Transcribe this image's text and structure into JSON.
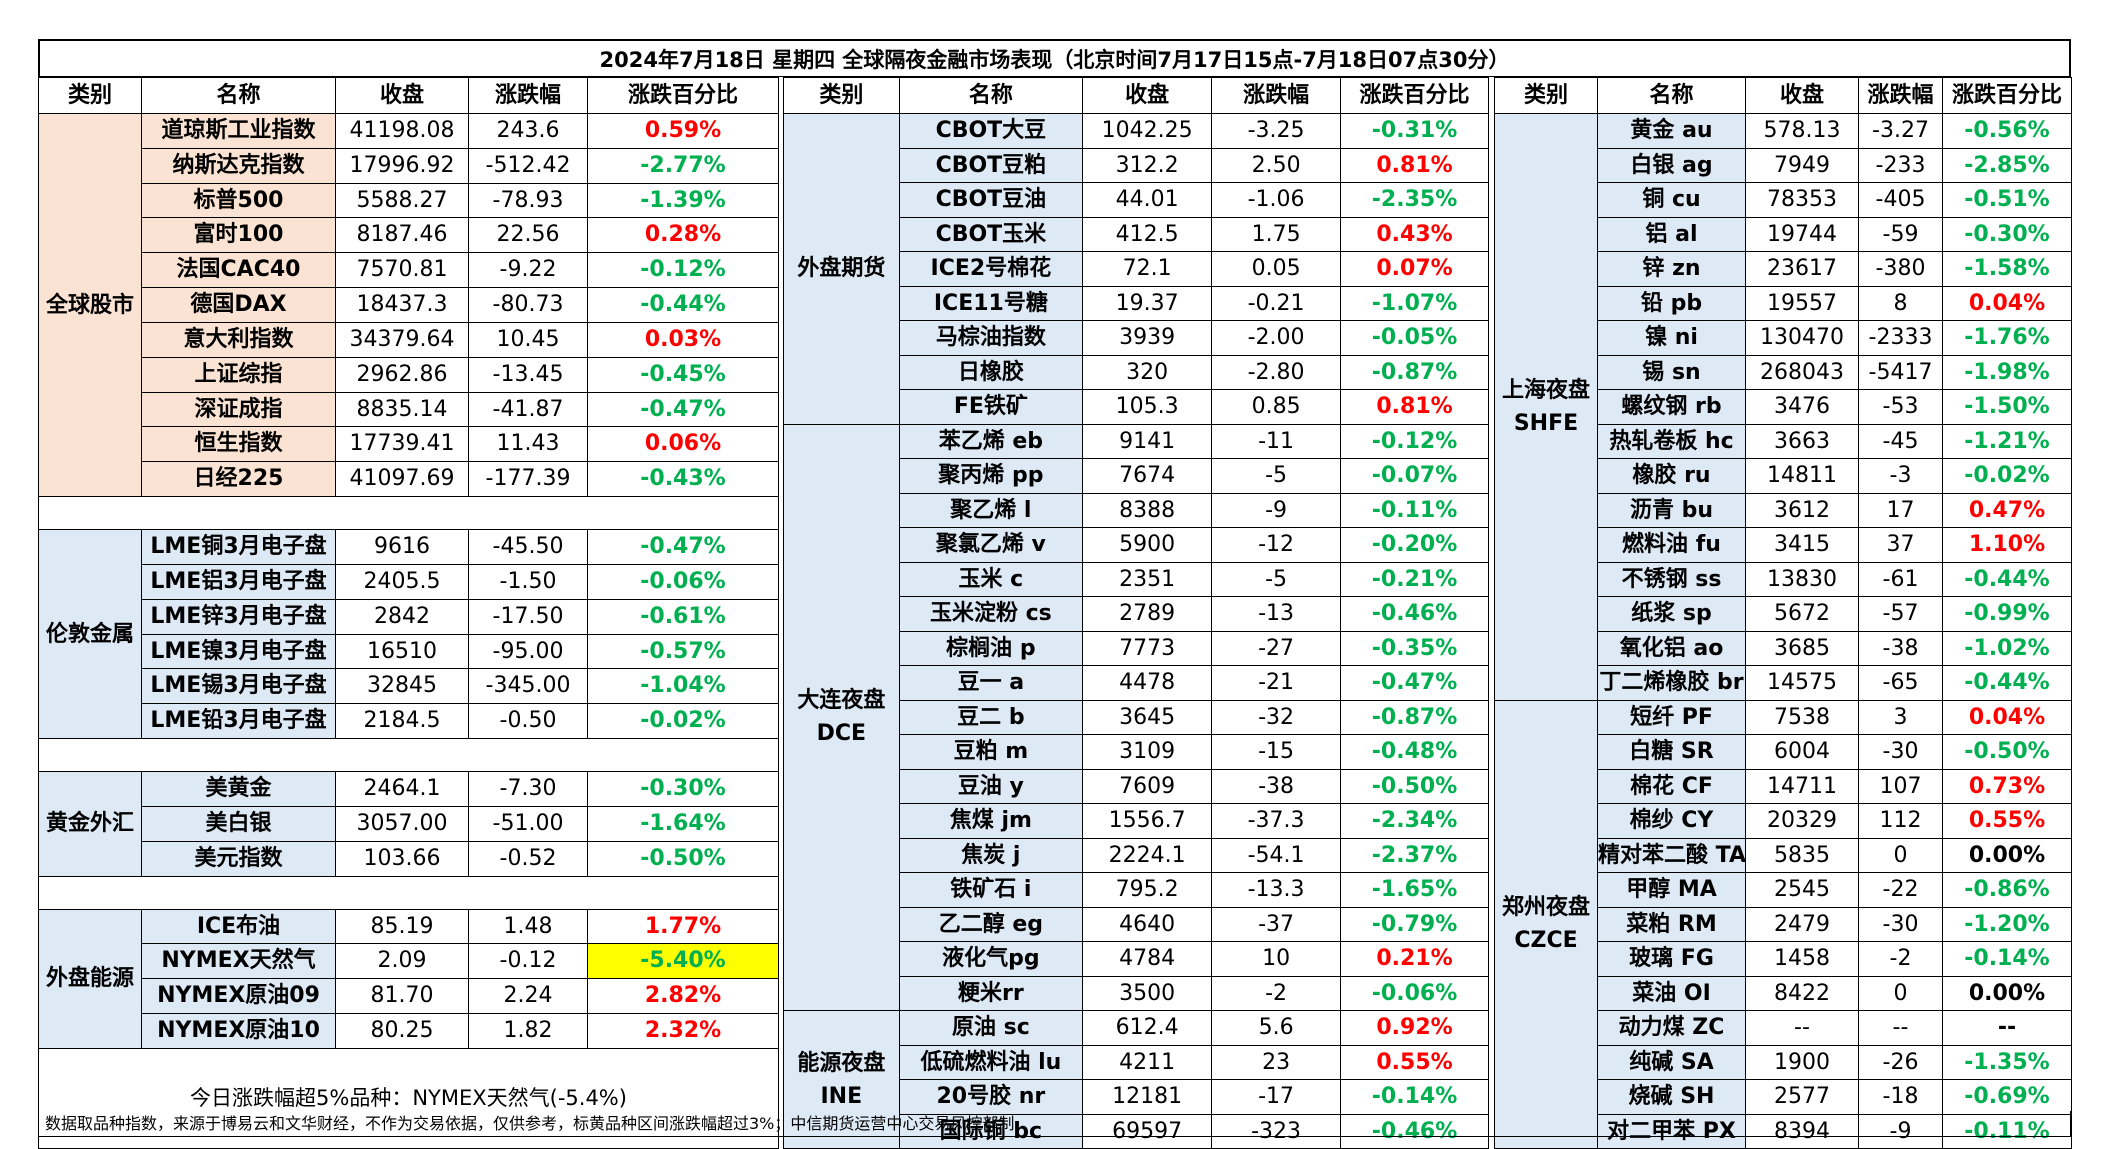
{
  "title": "2024年7月18日 星期四 全球隔夜金融市场表现（北京时间7月17日15点-7月18日07点30分）",
  "headers": [
    "类别",
    "名称",
    "收盘",
    "涨跌幅",
    "涨跌百分比"
  ],
  "left": {
    "groups": [
      {
        "cat": "全球股市",
        "bg": "orange",
        "rows": [
          [
            "道琼斯工业指数",
            "41198.08",
            "243.6",
            "0.59%",
            "up"
          ],
          [
            "纳斯达克指数",
            "17996.92",
            "-512.42",
            "-2.77%",
            "down"
          ],
          [
            "标普500",
            "5588.27",
            "-78.93",
            "-1.39%",
            "down"
          ],
          [
            "富时100",
            "8187.46",
            "22.56",
            "0.28%",
            "up"
          ],
          [
            "法国CAC40",
            "7570.81",
            "-9.22",
            "-0.12%",
            "down"
          ],
          [
            "德国DAX",
            "18437.3",
            "-80.73",
            "-0.44%",
            "down"
          ],
          [
            "意大利指数",
            "34379.64",
            "10.45",
            "0.03%",
            "up"
          ],
          [
            "上证综指",
            "2962.86",
            "-13.45",
            "-0.45%",
            "down"
          ],
          [
            "深证成指",
            "8835.14",
            "-41.87",
            "-0.47%",
            "down"
          ],
          [
            "恒生指数",
            "17739.41",
            "11.43",
            "0.06%",
            "up"
          ],
          [
            "日经225",
            "41097.69",
            "-177.39",
            "-0.43%",
            "down"
          ]
        ]
      },
      {
        "cat": "伦敦金属",
        "bg": "blue",
        "rows": [
          [
            "LME铜3月电子盘",
            "9616",
            "-45.50",
            "-0.47%",
            "down"
          ],
          [
            "LME铝3月电子盘",
            "2405.5",
            "-1.50",
            "-0.06%",
            "down"
          ],
          [
            "LME锌3月电子盘",
            "2842",
            "-17.50",
            "-0.61%",
            "down"
          ],
          [
            "LME镍3月电子盘",
            "16510",
            "-95.00",
            "-0.57%",
            "down"
          ],
          [
            "LME锡3月电子盘",
            "32845",
            "-345.00",
            "-1.04%",
            "down"
          ],
          [
            "LME铅3月电子盘",
            "2184.5",
            "-0.50",
            "-0.02%",
            "down"
          ]
        ]
      },
      {
        "cat": "黄金外汇",
        "bg": "blue",
        "rows": [
          [
            "美黄金",
            "2464.1",
            "-7.30",
            "-0.30%",
            "down"
          ],
          [
            "美白银",
            "3057.00",
            "-51.00",
            "-1.64%",
            "down"
          ],
          [
            "美元指数",
            "103.66",
            "-0.52",
            "-0.50%",
            "down"
          ]
        ]
      },
      {
        "cat": "外盘能源",
        "bg": "blue",
        "rows": [
          [
            "ICE布油",
            "85.19",
            "1.48",
            "1.77%",
            "up"
          ],
          [
            "NYMEX天然气",
            "2.09",
            "-0.12",
            "-5.40%",
            "down",
            "hl"
          ],
          [
            "NYMEX原油09",
            "81.70",
            "2.24",
            "2.82%",
            "up"
          ],
          [
            "NYMEX原油10",
            "80.25",
            "1.82",
            "2.32%",
            "up"
          ]
        ]
      }
    ],
    "note": "今日涨跌幅超5%品种：NYMEX天然气(-5.4%)"
  },
  "middle": {
    "groups": [
      {
        "cat": "外盘期货",
        "bg": "blue",
        "rows": [
          [
            "CBOT大豆",
            "1042.25",
            "-3.25",
            "-0.31%",
            "down"
          ],
          [
            "CBOT豆粕",
            "312.2",
            "2.50",
            "0.81%",
            "up"
          ],
          [
            "CBOT豆油",
            "44.01",
            "-1.06",
            "-2.35%",
            "down"
          ],
          [
            "CBOT玉米",
            "412.5",
            "1.75",
            "0.43%",
            "up"
          ],
          [
            "ICE2号棉花",
            "72.1",
            "0.05",
            "0.07%",
            "up"
          ],
          [
            "ICE11号糖",
            "19.37",
            "-0.21",
            "-1.07%",
            "down"
          ],
          [
            "马棕油指数",
            "3939",
            "-2.00",
            "-0.05%",
            "down"
          ],
          [
            "日橡胶",
            "320",
            "-2.80",
            "-0.87%",
            "down"
          ],
          [
            "FE铁矿",
            "105.3",
            "0.85",
            "0.81%",
            "up"
          ]
        ]
      },
      {
        "cat": "大连夜盘 DCE",
        "bg": "blue",
        "rows": [
          [
            "苯乙烯 eb",
            "9141",
            "-11",
            "-0.12%",
            "down"
          ],
          [
            "聚丙烯 pp",
            "7674",
            "-5",
            "-0.07%",
            "down"
          ],
          [
            "聚乙烯 l",
            "8388",
            "-9",
            "-0.11%",
            "down"
          ],
          [
            "聚氯乙烯 v",
            "5900",
            "-12",
            "-0.20%",
            "down"
          ],
          [
            "玉米 c",
            "2351",
            "-5",
            "-0.21%",
            "down"
          ],
          [
            "玉米淀粉 cs",
            "2789",
            "-13",
            "-0.46%",
            "down"
          ],
          [
            "棕榈油 p",
            "7773",
            "-27",
            "-0.35%",
            "down"
          ],
          [
            "豆一 a",
            "4478",
            "-21",
            "-0.47%",
            "down"
          ],
          [
            "豆二 b",
            "3645",
            "-32",
            "-0.87%",
            "down"
          ],
          [
            "豆粕 m",
            "3109",
            "-15",
            "-0.48%",
            "down"
          ],
          [
            "豆油 y",
            "7609",
            "-38",
            "-0.50%",
            "down"
          ],
          [
            "焦煤 jm",
            "1556.7",
            "-37.3",
            "-2.34%",
            "down"
          ],
          [
            "焦炭 j",
            "2224.1",
            "-54.1",
            "-2.37%",
            "down"
          ],
          [
            "铁矿石 i",
            "795.2",
            "-13.3",
            "-1.65%",
            "down"
          ],
          [
            "乙二醇 eg",
            "4640",
            "-37",
            "-0.79%",
            "down"
          ],
          [
            "液化气pg",
            "4784",
            "10",
            "0.21%",
            "up"
          ],
          [
            "粳米rr",
            "3500",
            "-2",
            "-0.06%",
            "down"
          ]
        ]
      },
      {
        "cat": "能源夜盘 INE",
        "bg": "blue",
        "rows": [
          [
            "原油 sc",
            "612.4",
            "5.6",
            "0.92%",
            "up"
          ],
          [
            "低硫燃料油 lu",
            "4211",
            "23",
            "0.55%",
            "up"
          ],
          [
            "20号胶 nr",
            "12181",
            "-17",
            "-0.14%",
            "down"
          ],
          [
            "国际铜 bc",
            "69597",
            "-323",
            "-0.46%",
            "down"
          ]
        ]
      }
    ]
  },
  "right": {
    "groups": [
      {
        "cat": "上海夜盘 SHFE",
        "bg": "blue",
        "rows": [
          [
            "黄金 au",
            "578.13",
            "-3.27",
            "-0.56%",
            "down"
          ],
          [
            "白银 ag",
            "7949",
            "-233",
            "-2.85%",
            "down"
          ],
          [
            "铜 cu",
            "78353",
            "-405",
            "-0.51%",
            "down"
          ],
          [
            "铝 al",
            "19744",
            "-59",
            "-0.30%",
            "down"
          ],
          [
            "锌 zn",
            "23617",
            "-380",
            "-1.58%",
            "down"
          ],
          [
            "铅 pb",
            "19557",
            "8",
            "0.04%",
            "up"
          ],
          [
            "镍 ni",
            "130470",
            "-2333",
            "-1.76%",
            "down"
          ],
          [
            "锡 sn",
            "268043",
            "-5417",
            "-1.98%",
            "down"
          ],
          [
            "螺纹钢 rb",
            "3476",
            "-53",
            "-1.50%",
            "down"
          ],
          [
            "热轧卷板 hc",
            "3663",
            "-45",
            "-1.21%",
            "down"
          ],
          [
            "橡胶 ru",
            "14811",
            "-3",
            "-0.02%",
            "down"
          ],
          [
            "沥青 bu",
            "3612",
            "17",
            "0.47%",
            "up"
          ],
          [
            "燃料油 fu",
            "3415",
            "37",
            "1.10%",
            "up"
          ],
          [
            "不锈钢 ss",
            "13830",
            "-61",
            "-0.44%",
            "down"
          ],
          [
            "纸浆 sp",
            "5672",
            "-57",
            "-0.99%",
            "down"
          ],
          [
            "氧化铝 ao",
            "3685",
            "-38",
            "-1.02%",
            "down"
          ],
          [
            "丁二烯橡胶 br",
            "14575",
            "-65",
            "-0.44%",
            "down"
          ]
        ]
      },
      {
        "cat": "郑州夜盘 CZCE",
        "bg": "blue",
        "rows": [
          [
            "短纤 PF",
            "7538",
            "3",
            "0.04%",
            "up"
          ],
          [
            "白糖 SR",
            "6004",
            "-30",
            "-0.50%",
            "down"
          ],
          [
            "棉花 CF",
            "14711",
            "107",
            "0.73%",
            "up"
          ],
          [
            "棉纱 CY",
            "20329",
            "112",
            "0.55%",
            "up"
          ],
          [
            "精对苯二酸 TA",
            "5835",
            "0",
            "0.00%",
            "flat"
          ],
          [
            "甲醇 MA",
            "2545",
            "-22",
            "-0.86%",
            "down"
          ],
          [
            "菜粕 RM",
            "2479",
            "-30",
            "-1.20%",
            "down"
          ],
          [
            "玻璃 FG",
            "1458",
            "-2",
            "-0.14%",
            "down"
          ],
          [
            "菜油 OI",
            "8422",
            "0",
            "0.00%",
            "flat"
          ],
          [
            "动力煤 ZC",
            "--",
            "--",
            "--",
            "flat"
          ],
          [
            "纯碱 SA",
            "1900",
            "-26",
            "-1.35%",
            "down"
          ],
          [
            "烧碱 SH",
            "2577",
            "-18",
            "-0.69%",
            "down"
          ],
          [
            "对二甲苯 PX",
            "8394",
            "-9",
            "-0.11%",
            "down"
          ]
        ]
      }
    ]
  },
  "footer": "数据取品种指数，来源于博易云和文华财经，不作为交易依据，仅供参考，标黄品种区间涨跌幅超过3%；中信期货运营中心交易风控部制"
}
